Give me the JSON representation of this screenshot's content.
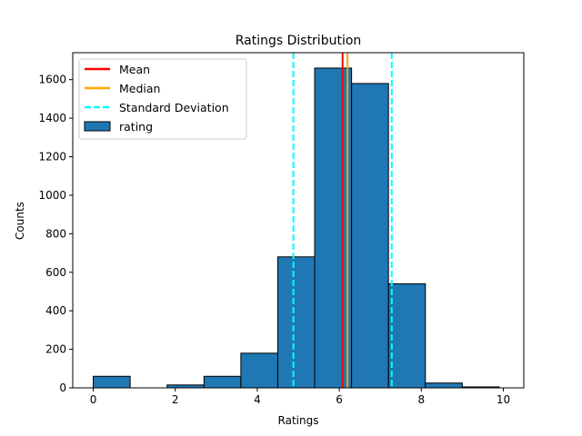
{
  "chart_data": {
    "type": "bar",
    "title": "Ratings Distribution",
    "xlabel": "Ratings",
    "ylabel": "Counts",
    "xlim": [
      -0.5,
      10.5
    ],
    "ylim": [
      0,
      1740
    ],
    "xticks": [
      0,
      2,
      4,
      6,
      8,
      10
    ],
    "xtick_labels": [
      "0",
      "2",
      "4",
      "6",
      "8",
      "10"
    ],
    "yticks": [
      0,
      200,
      400,
      600,
      800,
      1000,
      1200,
      1400,
      1600
    ],
    "ytick_labels": [
      "0",
      "200",
      "400",
      "600",
      "800",
      "1000",
      "1200",
      "1400",
      "1600"
    ],
    "grid": false,
    "legend_position": "top-left",
    "histogram": {
      "name": "rating",
      "color": "#1f77b4",
      "edgecolor": "#000000",
      "bin_edges": [
        0,
        0.9,
        1.8,
        2.7,
        3.6,
        4.5,
        5.4,
        6.3,
        7.2,
        8.1,
        9.0,
        9.9
      ],
      "counts": [
        60,
        0,
        15,
        60,
        180,
        680,
        1660,
        1580,
        540,
        25,
        5
      ]
    },
    "reference_lines": [
      {
        "name": "Mean",
        "values": [
          6.08
        ],
        "color": "#ff0000",
        "style": "solid"
      },
      {
        "name": "Median",
        "values": [
          6.2
        ],
        "color": "#ffa500",
        "style": "solid"
      },
      {
        "name": "Standard Deviation",
        "values": [
          4.88,
          7.28
        ],
        "color": "#00ffff",
        "style": "dashed"
      }
    ],
    "legend": [
      "Mean",
      "Median",
      "Standard Deviation",
      "rating"
    ]
  }
}
